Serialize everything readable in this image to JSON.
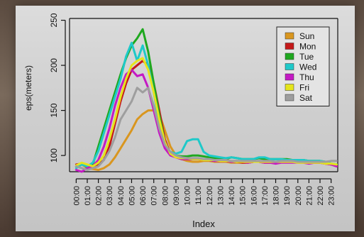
{
  "chart_data": {
    "type": "line",
    "xlabel": "Index",
    "ylabel": "eps(meters)",
    "ylim": [
      80,
      250
    ],
    "yticks": [
      100,
      150,
      200,
      250
    ],
    "xticks": [
      "00:00",
      "01:00",
      "02:00",
      "03:00",
      "04:00",
      "05:00",
      "06:00",
      "07:00",
      "08:00",
      "09:00",
      "10:00",
      "11:00",
      "12:00",
      "13:00",
      "14:00",
      "15:00",
      "16:00",
      "17:00",
      "18:00",
      "19:00",
      "20:00",
      "21:00",
      "22:00",
      "23:00"
    ],
    "x": [
      0,
      0.5,
      1,
      1.5,
      2,
      2.5,
      3,
      3.5,
      4,
      4.5,
      5,
      5.5,
      6,
      6.5,
      7,
      7.5,
      8,
      8.5,
      9,
      9.5,
      10,
      10.5,
      11,
      11.5,
      12,
      12.5,
      13,
      13.5,
      14,
      14.5,
      15,
      15.5,
      16,
      16.5,
      17,
      17.5,
      18,
      18.5,
      19,
      19.5,
      20,
      20.5,
      21,
      21.5,
      22,
      22.5,
      23,
      23.5
    ],
    "legend_position": "top-right",
    "series": [
      {
        "name": "Sun",
        "color": "#d9961f",
        "values": [
          88,
          90,
          86,
          85,
          84,
          86,
          90,
          98,
          108,
          118,
          128,
          140,
          146,
          150,
          150,
          146,
          128,
          110,
          100,
          96,
          94,
          93,
          93,
          94,
          94,
          93,
          93,
          93,
          92,
          92,
          92,
          92,
          93,
          93,
          92,
          92,
          92,
          93,
          93,
          93,
          93,
          93,
          92,
          92,
          92,
          91,
          90,
          88
        ]
      },
      {
        "name": "Mon",
        "color": "#c41a1a",
        "values": [
          90,
          91,
          88,
          87,
          90,
          95,
          110,
          135,
          160,
          180,
          195,
          200,
          205,
          200,
          180,
          150,
          118,
          102,
          98,
          96,
          96,
          96,
          96,
          95,
          95,
          94,
          94,
          94,
          93,
          93,
          92,
          92,
          93,
          93,
          92,
          92,
          92,
          93,
          93,
          93,
          93,
          93,
          92,
          92,
          92,
          91,
          90,
          89
        ]
      },
      {
        "name": "Tue",
        "color": "#1fa81f",
        "values": [
          88,
          91,
          87,
          90,
          110,
          130,
          150,
          170,
          190,
          208,
          222,
          230,
          240,
          215,
          180,
          145,
          115,
          102,
          100,
          99,
          99,
          100,
          100,
          99,
          98,
          97,
          97,
          96,
          98,
          97,
          96,
          96,
          96,
          97,
          96,
          96,
          96,
          96,
          96,
          95,
          95,
          95,
          94,
          94,
          94,
          93,
          91,
          90
        ]
      },
      {
        "name": "Wed",
        "color": "#1fc9c9",
        "values": [
          86,
          90,
          88,
          92,
          105,
          125,
          145,
          165,
          185,
          210,
          225,
          205,
          222,
          200,
          170,
          135,
          112,
          104,
          102,
          104,
          116,
          118,
          118,
          104,
          100,
          99,
          98,
          97,
          98,
          97,
          96,
          96,
          96,
          98,
          98,
          96,
          96,
          96,
          95,
          95,
          95,
          95,
          94,
          94,
          94,
          93,
          91,
          90
        ]
      },
      {
        "name": "Thu",
        "color": "#c41ac4",
        "values": [
          84,
          82,
          86,
          88,
          95,
          110,
          130,
          155,
          175,
          190,
          195,
          188,
          190,
          175,
          150,
          125,
          108,
          100,
          98,
          96,
          96,
          96,
          96,
          95,
          95,
          94,
          94,
          94,
          93,
          93,
          93,
          92,
          93,
          93,
          92,
          92,
          91,
          92,
          92,
          92,
          92,
          92,
          91,
          92,
          92,
          91,
          90,
          88
        ]
      },
      {
        "name": "Fri",
        "color": "#e5e51a",
        "values": [
          89,
          92,
          90,
          88,
          92,
          100,
          118,
          140,
          165,
          185,
          200,
          205,
          208,
          195,
          170,
          140,
          115,
          102,
          98,
          97,
          97,
          96,
          96,
          95,
          95,
          95,
          94,
          94,
          94,
          93,
          93,
          93,
          93,
          93,
          93,
          93,
          93,
          93,
          93,
          93,
          92,
          92,
          92,
          92,
          92,
          91,
          91,
          90
        ]
      },
      {
        "name": "Sat",
        "color": "#9e9e9e",
        "values": [
          88,
          86,
          84,
          86,
          88,
          95,
          105,
          120,
          140,
          150,
          160,
          175,
          170,
          175,
          155,
          130,
          112,
          104,
          100,
          98,
          97,
          97,
          97,
          96,
          96,
          95,
          95,
          95,
          94,
          94,
          94,
          94,
          94,
          94,
          94,
          94,
          93,
          94,
          94,
          94,
          93,
          93,
          93,
          93,
          93,
          93,
          94,
          94
        ]
      }
    ]
  }
}
